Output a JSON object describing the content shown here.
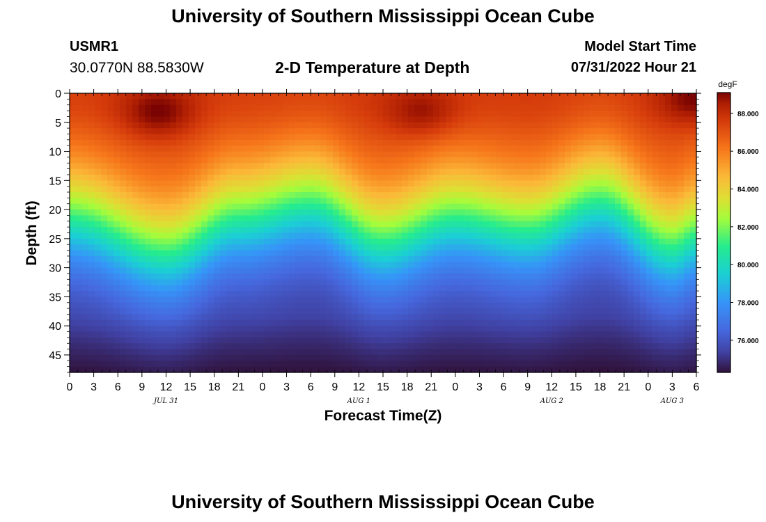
{
  "header": {
    "title": "University of Southern Mississippi Ocean Cube",
    "station_id": "USMR1",
    "coords": "30.0770N  88.5830W",
    "subtitle": "2-D Temperature at Depth",
    "model_start_label": "Model Start Time",
    "model_start_value": "07/31/2022 Hour 21"
  },
  "footer": {
    "title": "University of Southern Mississippi Ocean Cube"
  },
  "chart_data": {
    "type": "heatmap",
    "title": "2-D Temperature at Depth",
    "xlabel": "Forecast Time(Z)",
    "ylabel": "Depth (ft)",
    "x_start_hour": 0,
    "x_end_hour": 78,
    "x_ticks": [
      "0",
      "3",
      "6",
      "9",
      "12",
      "15",
      "18",
      "21",
      "0",
      "3",
      "6",
      "9",
      "12",
      "15",
      "18",
      "21",
      "0",
      "3",
      "6",
      "9",
      "12",
      "15",
      "18",
      "21",
      "0",
      "3",
      "6"
    ],
    "date_labels": [
      {
        "label": "JUL 31",
        "hour": 12
      },
      {
        "label": "AUG 1",
        "hour": 36
      },
      {
        "label": "AUG 2",
        "hour": 60
      },
      {
        "label": "AUG 3",
        "hour": 75
      }
    ],
    "ylim": [
      0,
      48
    ],
    "y_ticks": [
      "0",
      "5",
      "10",
      "15",
      "20",
      "25",
      "30",
      "35",
      "40",
      "45"
    ],
    "y_tick_values": [
      0,
      5,
      10,
      15,
      20,
      25,
      30,
      35,
      40,
      45
    ],
    "colorbar": {
      "unit": "degF",
      "min": 74.3,
      "max": 89.1,
      "tick_values": [
        76,
        78,
        80,
        82,
        84,
        86,
        88
      ],
      "tick_labels": [
        "76.000",
        "78.000",
        "80.000",
        "82.000",
        "84.000",
        "86.000",
        "88.000"
      ]
    },
    "thermocline_depth_by_hour": [
      {
        "hour": 0,
        "depth": 21
      },
      {
        "hour": 12,
        "depth": 27
      },
      {
        "hour": 21,
        "depth": 21
      },
      {
        "hour": 30,
        "depth": 18.5
      },
      {
        "hour": 39,
        "depth": 25
      },
      {
        "hour": 48,
        "depth": 21
      },
      {
        "hour": 57,
        "depth": 23
      },
      {
        "hour": 66,
        "depth": 18
      },
      {
        "hour": 75,
        "depth": 26
      },
      {
        "hour": 78,
        "depth": 24
      }
    ],
    "surface_warm_spots": [
      {
        "hour": 11,
        "depth": 3.5,
        "value": 89.0
      },
      {
        "hour": 44,
        "depth": 3.5,
        "value": 88.8
      },
      {
        "hour": 78,
        "depth": 1,
        "value": 89.0
      }
    ],
    "near_surface_temp": 87.5,
    "bottom_temp": 75.0
  }
}
